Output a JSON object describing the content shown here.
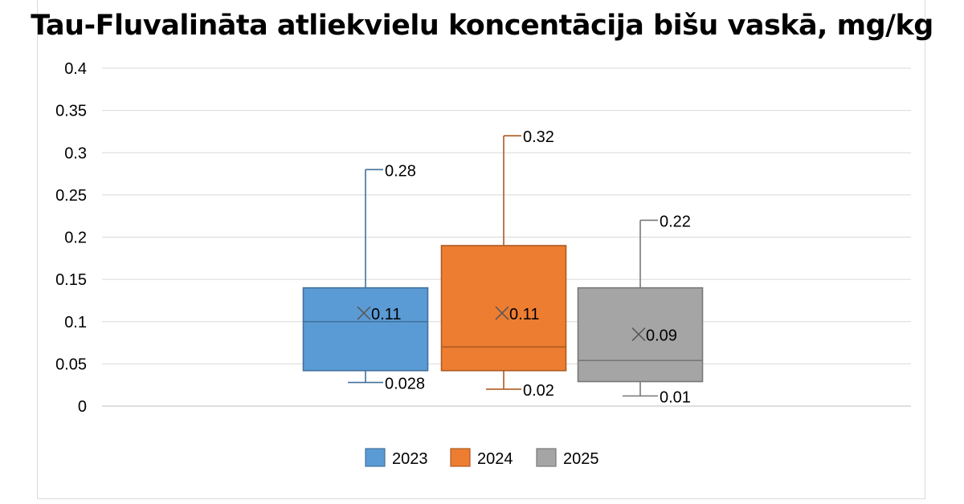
{
  "chart_data": {
    "type": "box",
    "title": "Tau-Fluvalināta atliekvielu koncentācija bišu vaskā, mg/kg",
    "xlabel": "",
    "ylabel": "",
    "ylim": [
      0,
      0.4
    ],
    "yticks": [
      "0",
      "0.05",
      "0.1",
      "0.15",
      "0.2",
      "0.25",
      "0.3",
      "0.35",
      "0.4"
    ],
    "grid": true,
    "legend_position": "bottom",
    "series": [
      {
        "name": "2023",
        "color": "#5b9bd5",
        "edge": "#41719c",
        "min": 0.028,
        "q1": 0.042,
        "median": 0.1,
        "q3": 0.14,
        "max": 0.28,
        "mean": 0.11,
        "label_max": "0.28",
        "label_mean": "0.11",
        "label_min": "0.028"
      },
      {
        "name": "2024",
        "color": "#ed7d31",
        "edge": "#ae5a21",
        "min": 0.02,
        "q1": 0.042,
        "median": 0.07,
        "q3": 0.19,
        "max": 0.32,
        "mean": 0.11,
        "label_max": "0.32",
        "label_mean": "0.11",
        "label_min": "0.02"
      },
      {
        "name": "2025",
        "color": "#a5a5a5",
        "edge": "#787878",
        "min": 0.012,
        "q1": 0.029,
        "median": 0.054,
        "q3": 0.14,
        "max": 0.22,
        "mean": 0.085,
        "label_max": "0.22",
        "label_mean": "0.09",
        "label_min": "0.01"
      }
    ]
  }
}
